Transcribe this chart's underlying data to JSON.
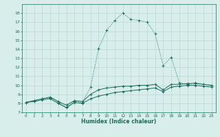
{
  "x": [
    0,
    1,
    2,
    3,
    4,
    5,
    6,
    7,
    8,
    9,
    10,
    11,
    12,
    13,
    14,
    15,
    16,
    17,
    18,
    19,
    20,
    21,
    22,
    23
  ],
  "line_max": [
    8.1,
    8.3,
    8.5,
    8.6,
    8.1,
    7.6,
    8.2,
    8.1,
    9.8,
    14.1,
    16.1,
    17.2,
    18.0,
    17.3,
    17.2,
    17.0,
    15.7,
    12.2,
    13.1,
    10.3,
    10.1,
    10.3,
    10.1,
    10.0
  ],
  "line_mean": [
    8.1,
    8.3,
    8.5,
    8.7,
    8.2,
    7.8,
    8.3,
    8.2,
    9.0,
    9.5,
    9.7,
    9.8,
    9.9,
    9.9,
    10.0,
    10.0,
    10.1,
    9.5,
    10.1,
    10.1,
    10.2,
    10.2,
    10.1,
    10.0
  ],
  "line_min": [
    8.1,
    8.2,
    8.4,
    8.5,
    8.0,
    7.5,
    8.1,
    8.0,
    8.5,
    8.8,
    9.0,
    9.2,
    9.3,
    9.4,
    9.5,
    9.6,
    9.7,
    9.3,
    9.8,
    9.9,
    10.0,
    10.0,
    9.9,
    9.8
  ],
  "line_color": "#1a6b5a",
  "bg_color": "#d8eeeb",
  "grid_color": "#b8d8d4",
  "xlabel": "Humidex (Indice chaleur)",
  "ylim": [
    7,
    19
  ],
  "xlim": [
    -0.5,
    23.5
  ],
  "yticks": [
    7,
    8,
    9,
    10,
    11,
    12,
    13,
    14,
    15,
    16,
    17,
    18
  ],
  "xticks": [
    0,
    1,
    2,
    3,
    4,
    5,
    6,
    7,
    8,
    9,
    10,
    11,
    12,
    13,
    14,
    15,
    16,
    17,
    18,
    19,
    20,
    21,
    22,
    23
  ]
}
